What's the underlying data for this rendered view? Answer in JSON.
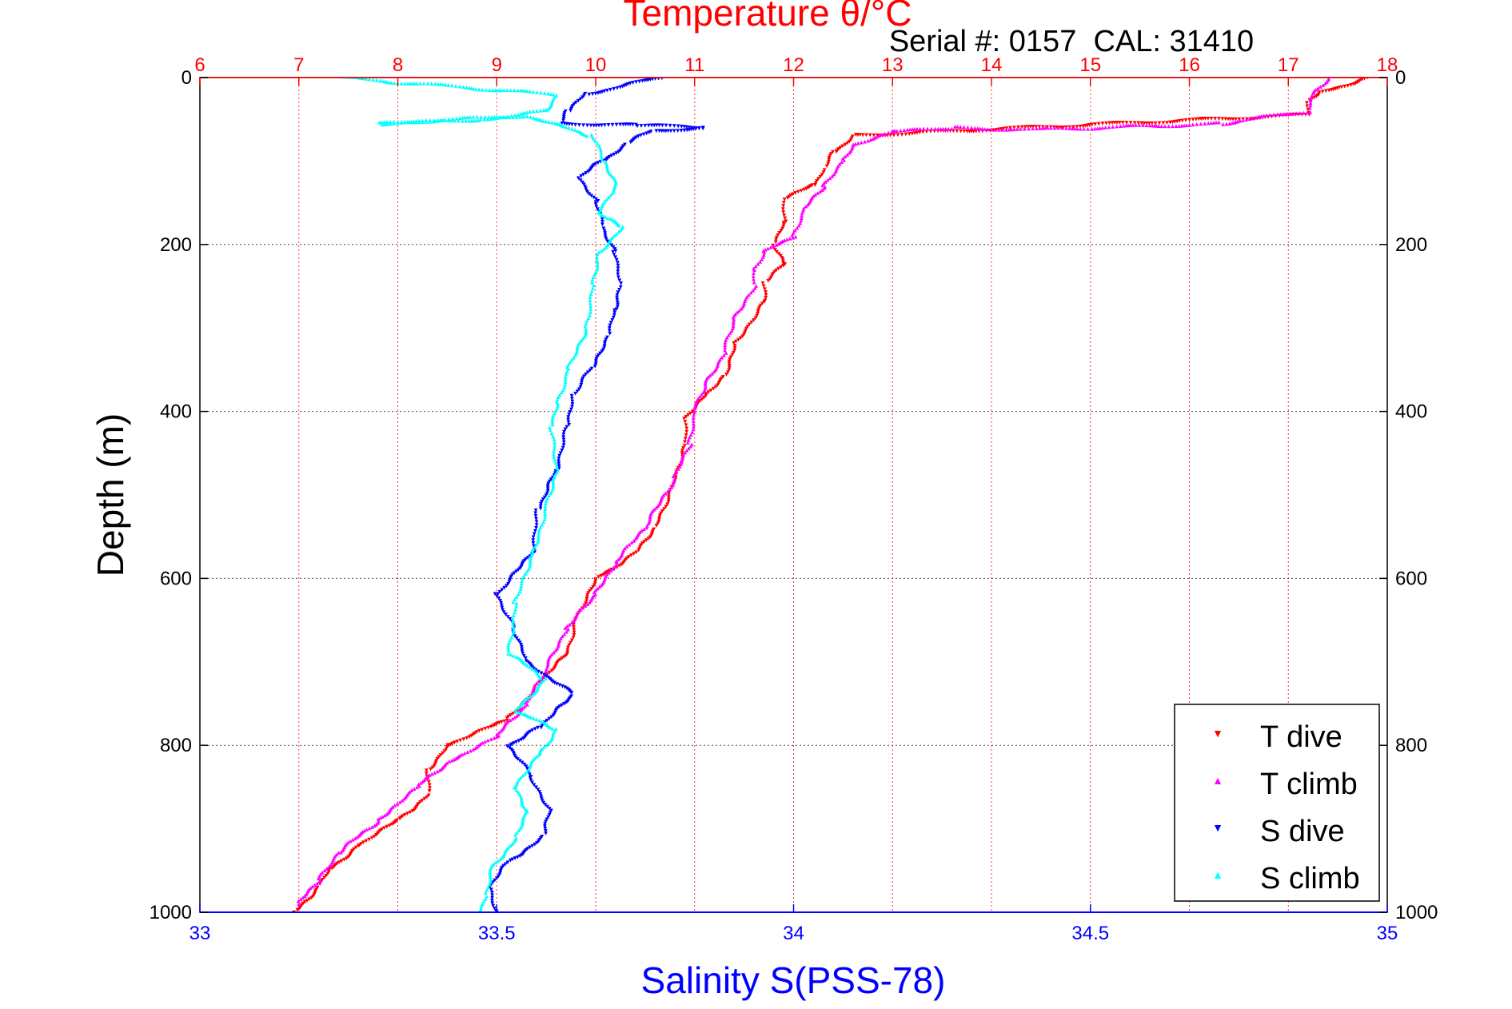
{
  "chart_data": {
    "type": "scatter",
    "title": "Temperature θ/°C",
    "subtitle": "Serial #: 0157  CAL: 31410",
    "ylabel": "Depth (m)",
    "xlabel": "Salinity S(PSS-78)",
    "x2label": "Temperature θ/°C",
    "ylim": [
      0,
      1000
    ],
    "y_reversed": true,
    "xlim_salinity": [
      33,
      35
    ],
    "xlim_temperature": [
      6,
      18
    ],
    "y_ticks": [
      "0",
      "200",
      "400",
      "600",
      "800",
      "1000"
    ],
    "x_bottom_ticks": [
      "33",
      "33.5",
      "34",
      "34.5",
      "35"
    ],
    "x_top_ticks": [
      "6",
      "7",
      "8",
      "9",
      "10",
      "11",
      "12",
      "13",
      "14",
      "15",
      "16",
      "17",
      "18"
    ],
    "grid_horizontal": true,
    "grid_vertical_temperature": true,
    "legend_position": "bottom-right",
    "series": [
      {
        "name": "T dive",
        "axis": "temperature",
        "marker": "triangle-down",
        "color": "#ff0000",
        "x": [
          17.8,
          17.3,
          17.2,
          17.2,
          12.6,
          12.4,
          12.3,
          12.2,
          11.9,
          11.9,
          11.8,
          11.9,
          11.7,
          11.7,
          11.4,
          11.3,
          11.1,
          10.9,
          10.9,
          10.8,
          10.6,
          10.4,
          10.0,
          9.8,
          9.7,
          9.4,
          9.1,
          8.5,
          8.3,
          8.3,
          8.0,
          7.6,
          7.3,
          7.2,
          6.95
        ],
        "y": [
          0,
          20,
          30,
          45,
          70,
          90,
          110,
          130,
          145,
          175,
          200,
          225,
          245,
          270,
          320,
          360,
          380,
          410,
          440,
          480,
          540,
          570,
          600,
          650,
          690,
          730,
          770,
          800,
          830,
          860,
          890,
          920,
          950,
          970,
          1000
        ]
      },
      {
        "name": "T climb",
        "axis": "temperature",
        "marker": "triangle-up",
        "color": "#ff00ff",
        "x": [
          17.4,
          17.25,
          17.2,
          16.3,
          15.0,
          14.5,
          13.6,
          13.0,
          12.6,
          12.5,
          12.3,
          12.1,
          12.0,
          11.7,
          11.6,
          11.6,
          11.4,
          11.3,
          11.1,
          11.0,
          10.95,
          10.8,
          10.5,
          10.2,
          10.0,
          9.7,
          9.5,
          9.3,
          9.0,
          8.5,
          8.2,
          7.8,
          7.4,
          7.2,
          7.0
        ],
        "y": [
          0,
          20,
          40,
          55,
          60,
          62,
          60,
          65,
          80,
          100,
          130,
          160,
          190,
          210,
          230,
          250,
          290,
          330,
          370,
          400,
          440,
          480,
          540,
          580,
          620,
          660,
          710,
          750,
          790,
          820,
          850,
          890,
          930,
          960,
          990
        ]
      },
      {
        "name": "S dive",
        "axis": "salinity",
        "marker": "triangle-down",
        "color": "#0000ff",
        "x": [
          33.78,
          33.65,
          33.62,
          33.61,
          33.74,
          33.85,
          33.76,
          33.72,
          33.68,
          33.64,
          33.67,
          33.68,
          33.7,
          33.71,
          33.7,
          33.69,
          33.66,
          33.63,
          33.62,
          33.6,
          33.57,
          33.56,
          33.5,
          33.53,
          33.55,
          33.63,
          33.57,
          33.52,
          33.56,
          33.59,
          33.58,
          33.52,
          33.49,
          33.5
        ],
        "y": [
          0,
          20,
          40,
          55,
          58,
          60,
          65,
          80,
          100,
          120,
          150,
          180,
          210,
          250,
          280,
          310,
          350,
          380,
          420,
          470,
          520,
          570,
          620,
          660,
          700,
          740,
          780,
          800,
          840,
          880,
          910,
          940,
          970,
          1000
        ]
      },
      {
        "name": "S climb",
        "axis": "salinity",
        "marker": "triangle-up",
        "color": "#00ffff",
        "x": [
          33.24,
          33.6,
          33.58,
          33.47,
          33.3,
          33.55,
          33.66,
          33.68,
          33.7,
          33.67,
          33.71,
          33.67,
          33.66,
          33.65,
          33.62,
          33.6,
          33.59,
          33.6,
          33.58,
          33.56,
          33.53,
          33.52,
          33.58,
          33.53,
          33.6,
          33.57,
          33.53,
          33.55,
          33.53,
          33.49,
          33.48,
          33.47
        ],
        "y": [
          0,
          20,
          40,
          50,
          55,
          45,
          70,
          100,
          130,
          160,
          180,
          210,
          250,
          300,
          350,
          390,
          420,
          470,
          520,
          570,
          630,
          690,
          720,
          760,
          780,
          810,
          850,
          880,
          910,
          950,
          980,
          1000
        ]
      }
    ]
  }
}
